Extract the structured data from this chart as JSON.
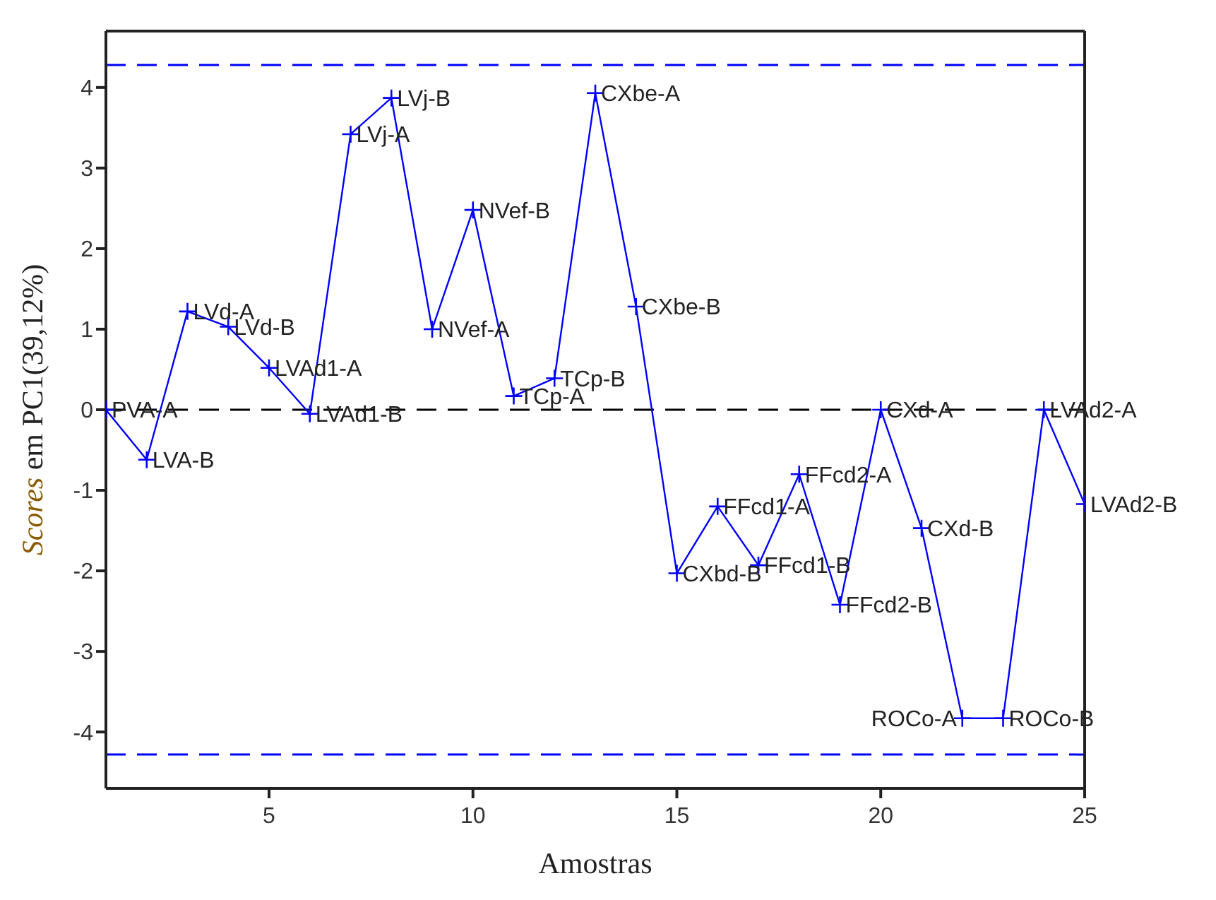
{
  "chart_data": {
    "type": "line",
    "xlabel": "Amostras",
    "ylabel": "Scores em PC1(39,12%)",
    "x": [
      1,
      2,
      3,
      4,
      5,
      6,
      7,
      8,
      9,
      10,
      11,
      12,
      13,
      14,
      15,
      16,
      17,
      18,
      19,
      20,
      21,
      22,
      23,
      24,
      25
    ],
    "series": [
      {
        "color": "#0000ff",
        "values": [
          0,
          -0.62,
          1.22,
          1.03,
          0.52,
          -0.05,
          3.42,
          3.87,
          1.0,
          2.48,
          0.17,
          0.39,
          3.93,
          1.28,
          -2.03,
          -1.2,
          -1.93,
          -0.8,
          -2.42,
          0.0,
          -1.47,
          -3.83,
          -3.83,
          0.0,
          -1.17
        ]
      }
    ],
    "xlim": [
      1,
      25
    ],
    "xticks": [
      5,
      10,
      15,
      20,
      25
    ],
    "ylim": [
      -4.7,
      4.7
    ],
    "yticks": [
      -4,
      -3,
      -2,
      -1,
      0,
      1,
      2,
      3,
      4
    ],
    "marker": "cross",
    "grid": false,
    "legend": false,
    "ref_lines": [
      {
        "axis": "y",
        "value": 4.28,
        "color": "#0000ff",
        "line_style": "dashed"
      },
      {
        "axis": "y",
        "value": 0,
        "color": "#000000",
        "line_style": "dashed"
      },
      {
        "axis": "y",
        "value": -4.28,
        "color": "#0000ff",
        "line_style": "dashed"
      }
    ],
    "annotations": [
      {
        "text": "PVA-A",
        "x": 1,
        "y": 0
      },
      {
        "text": "LVA-B",
        "x": 2,
        "y": -0.62
      },
      {
        "text": "LVd-A",
        "x": 3,
        "y": 1.22
      },
      {
        "text": "LVd-B",
        "x": 4,
        "y": 1.03
      },
      {
        "text": "LVAd1-A",
        "x": 5,
        "y": 0.52
      },
      {
        "text": "LVAd1-B",
        "x": 6,
        "y": -0.05
      },
      {
        "text": "LVj-A",
        "x": 7,
        "y": 3.42
      },
      {
        "text": "LVj-B",
        "x": 8,
        "y": 3.87
      },
      {
        "text": "NVef-A",
        "x": 9,
        "y": 1.0
      },
      {
        "text": "NVef-B",
        "x": 10,
        "y": 2.48
      },
      {
        "text": "TCp-A",
        "x": 11,
        "y": 0.17
      },
      {
        "text": "TCp-B",
        "x": 12,
        "y": 0.39
      },
      {
        "text": "CXbe-A",
        "x": 13,
        "y": 3.93
      },
      {
        "text": "CXbe-B",
        "x": 14,
        "y": 1.28
      },
      {
        "text": "CXbd-B",
        "x": 15,
        "y": -2.03
      },
      {
        "text": "FFcd1-A",
        "x": 16,
        "y": -1.2
      },
      {
        "text": "FFcd1-B",
        "x": 17,
        "y": -1.93
      },
      {
        "text": "FFcd2-A",
        "x": 18,
        "y": -0.8
      },
      {
        "text": "FFcd2-B",
        "x": 19,
        "y": -2.42
      },
      {
        "text": "CXd-A",
        "x": 20,
        "y": 0.0
      },
      {
        "text": "CXd-B",
        "x": 21,
        "y": -1.47
      },
      {
        "text": "ROCo-A",
        "x": 22,
        "y": -3.83
      },
      {
        "text": "ROCo-B",
        "x": 23,
        "y": -3.83
      },
      {
        "text": "LVAd2-A",
        "x": 24,
        "y": 0.0
      },
      {
        "text": "LVAd2-B",
        "x": 25,
        "y": -1.17
      }
    ]
  }
}
